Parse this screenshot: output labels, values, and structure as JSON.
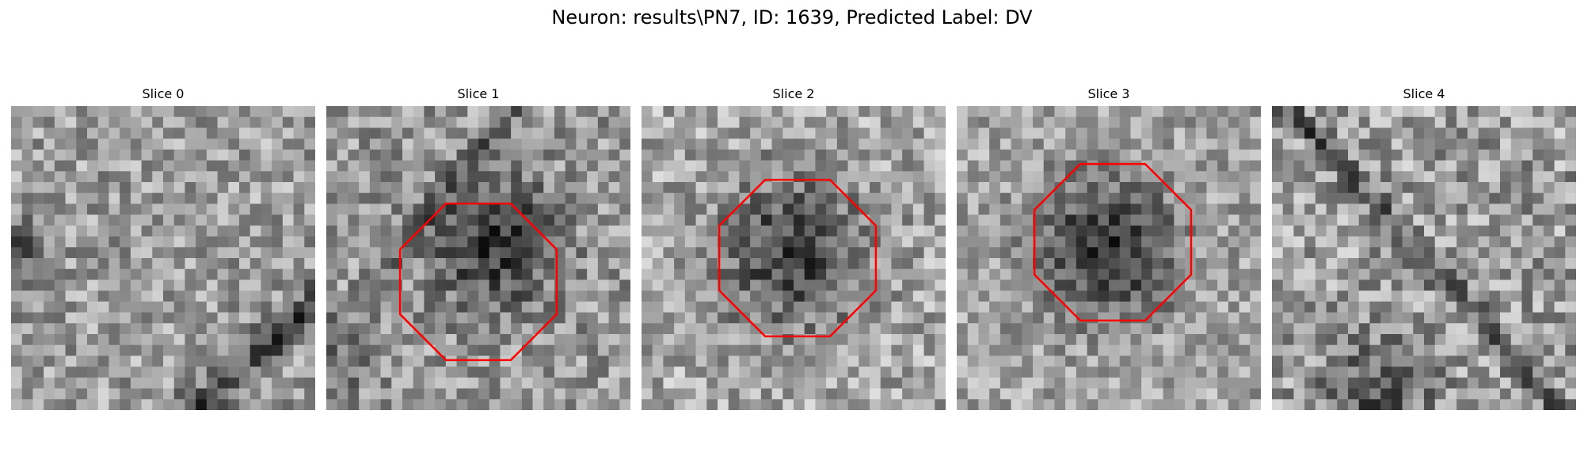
{
  "figure": {
    "title": "Neuron: results\\PN7, ID: 1639, Predicted Label: DV"
  },
  "colors": {
    "background": "#ffffff",
    "outline": "#ff0000"
  },
  "slices": [
    {
      "title": "Slice 0",
      "has_outline": false
    },
    {
      "title": "Slice 1",
      "has_outline": true
    },
    {
      "title": "Slice 2",
      "has_outline": true
    },
    {
      "title": "Slice 3",
      "has_outline": true
    },
    {
      "title": "Slice 4",
      "has_outline": false
    }
  ]
}
